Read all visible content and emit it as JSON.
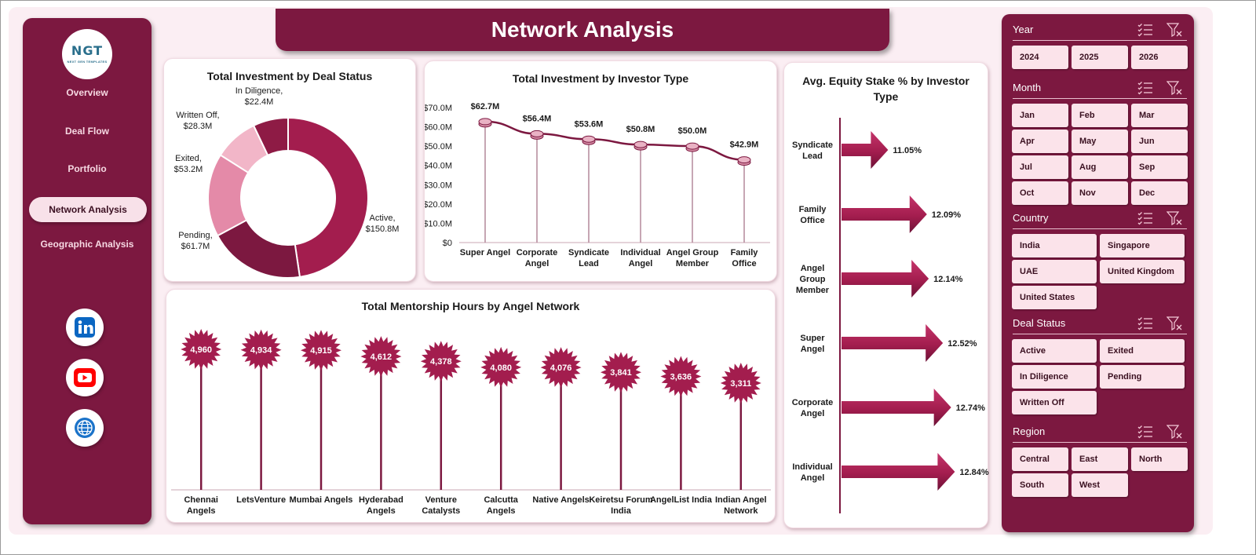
{
  "logo": {
    "text": "NGT",
    "subtext": "NEXT GEN TEMPLATES"
  },
  "nav": {
    "items": [
      {
        "label": "Overview"
      },
      {
        "label": "Deal Flow"
      },
      {
        "label": "Portfolio"
      },
      {
        "label": "Network Analysis"
      },
      {
        "label": "Geographic Analysis"
      }
    ],
    "active": "Network Analysis"
  },
  "social": [
    {
      "icon": "linkedin-icon",
      "color": "#0a66c2"
    },
    {
      "icon": "youtube-icon",
      "color": "#ff0000"
    },
    {
      "icon": "globe-icon",
      "color": "#1b73c9"
    }
  ],
  "title": "Network Analysis",
  "colors": {
    "brand": "#7c1840",
    "accent": "#a31d4e",
    "light": "#fbe3ea"
  },
  "cards": {
    "deal_status": {
      "title": "Total Investment by Deal Status"
    },
    "investor_type": {
      "title": "Total Investment by Investor Type"
    },
    "equity": {
      "title": "Avg. Equity Stake % by Investor Type"
    },
    "mentorship": {
      "title": "Total Mentorship Hours by Angel Network"
    }
  },
  "chart_data": [
    {
      "type": "pie",
      "title": "Total Investment by Deal Status",
      "slices": [
        {
          "name": "Active",
          "value": 150.8,
          "label": "$150.8M",
          "color": "#a31d4e"
        },
        {
          "name": "Pending",
          "value": 61.7,
          "label": "$61.7M",
          "color": "#7c1840"
        },
        {
          "name": "Exited",
          "value": 53.2,
          "label": "$53.2M",
          "color": "#e48aa8"
        },
        {
          "name": "Written Off",
          "value": 28.3,
          "label": "$28.3M",
          "color": "#f2b6c8"
        },
        {
          "name": "In Diligence",
          "value": 22.4,
          "label": "$22.4M",
          "color": "#8e1b45"
        }
      ]
    },
    {
      "type": "line",
      "title": "Total Investment by Investor Type",
      "categories": [
        "Super Angel",
        "Corporate Angel",
        "Syndicate Lead",
        "Individual Angel",
        "Angel Group Member",
        "Family Office"
      ],
      "category_lines": [
        [
          "Super Angel"
        ],
        [
          "Corporate",
          "Angel"
        ],
        [
          "Syndicate",
          "Lead"
        ],
        [
          "Individual",
          "Angel"
        ],
        [
          "Angel Group",
          "Member"
        ],
        [
          "Family",
          "Office"
        ]
      ],
      "values": [
        62.7,
        56.4,
        53.6,
        50.8,
        50.0,
        42.9
      ],
      "data_labels": [
        "$62.7M",
        "$56.4M",
        "$53.6M",
        "$50.8M",
        "$50.0M",
        "$42.9M"
      ],
      "yticks": [
        "$0",
        "$10.0M",
        "$20.0M",
        "$30.0M",
        "$40.0M",
        "$50.0M",
        "$60.0M",
        "$70.0M"
      ],
      "ylim": [
        0,
        70
      ]
    },
    {
      "type": "bar",
      "title": "Avg. Equity Stake % by Investor Type",
      "categories": [
        "Syndicate Lead",
        "Family Office",
        "Angel Group Member",
        "Super Angel",
        "Corporate Angel",
        "Individual Angel"
      ],
      "category_lines": [
        [
          "Syndicate",
          "Lead"
        ],
        [
          "Family",
          "Office"
        ],
        [
          "Angel",
          "Group",
          "Member"
        ],
        [
          "Super",
          "Angel"
        ],
        [
          "Corporate",
          "Angel"
        ],
        [
          "Individual",
          "Angel"
        ]
      ],
      "values": [
        11.05,
        12.09,
        12.14,
        12.52,
        12.74,
        12.84
      ],
      "data_labels": [
        "11.05%",
        "12.09%",
        "12.14%",
        "12.52%",
        "12.74%",
        "12.84%"
      ],
      "orientation": "horizontal"
    },
    {
      "type": "bar",
      "title": "Total Mentorship Hours by Angel Network",
      "categories": [
        "Chennai Angels",
        "LetsVenture",
        "Mumbai Angels",
        "Hyderabad Angels",
        "Venture Catalysts",
        "Calcutta Angels",
        "Native Angels",
        "Keiretsu Forum India",
        "AngelList India",
        "Indian Angel Network"
      ],
      "category_lines": [
        [
          "Chennai",
          "Angels"
        ],
        [
          "LetsVenture"
        ],
        [
          "Mumbai Angels"
        ],
        [
          "Hyderabad",
          "Angels"
        ],
        [
          "Venture",
          "Catalysts"
        ],
        [
          "Calcutta",
          "Angels"
        ],
        [
          "Native Angels"
        ],
        [
          "Keiretsu Forum",
          "India"
        ],
        [
          "AngelList India"
        ],
        [
          "Indian Angel",
          "Network"
        ]
      ],
      "values": [
        4960,
        4934,
        4915,
        4612,
        4378,
        4080,
        4076,
        3841,
        3636,
        3311
      ],
      "data_labels": [
        "4,960",
        "4,934",
        "4,915",
        "4,612",
        "4,378",
        "4,080",
        "4,076",
        "3,841",
        "3,636",
        "3,311"
      ]
    }
  ],
  "slicers": [
    {
      "name": "Year",
      "options": [
        "2024",
        "2025",
        "2026"
      ]
    },
    {
      "name": "Month",
      "options": [
        "Jan",
        "Feb",
        "Mar",
        "Apr",
        "May",
        "Jun",
        "Jul",
        "Aug",
        "Sep",
        "Oct",
        "Nov",
        "Dec"
      ]
    },
    {
      "name": "Country",
      "options": [
        "India",
        "Singapore",
        "UAE",
        "United Kingdom",
        "United States"
      ]
    },
    {
      "name": "Deal Status",
      "options": [
        "Active",
        "Exited",
        "In Diligence",
        "Pending",
        "Written Off"
      ]
    },
    {
      "name": "Region",
      "options": [
        "Central",
        "East",
        "North",
        "South",
        "West"
      ]
    }
  ]
}
